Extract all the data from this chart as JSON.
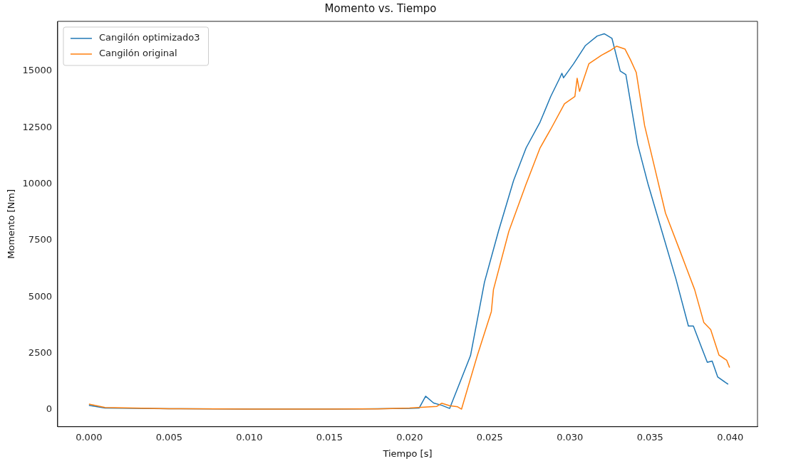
{
  "chart_data": {
    "type": "line",
    "title": "Momento vs. Tiempo",
    "xlabel": "Tiempo [s]",
    "ylabel": "Momento [Nm]",
    "xlim": [
      -0.00195,
      0.0417
    ],
    "ylim": [
      -750,
      17200
    ],
    "xticks": [
      {
        "value": 0,
        "label": "0.000"
      },
      {
        "value": 0.005,
        "label": "0.005"
      },
      {
        "value": 0.01,
        "label": "0.010"
      },
      {
        "value": 0.015,
        "label": "0.015"
      },
      {
        "value": 0.02,
        "label": "0.020"
      },
      {
        "value": 0.025,
        "label": "0.025"
      },
      {
        "value": 0.03,
        "label": "0.030"
      },
      {
        "value": 0.035,
        "label": "0.035"
      },
      {
        "value": 0.04,
        "label": "0.040"
      }
    ],
    "yticks": [
      0,
      2500,
      5000,
      7500,
      10000,
      12500,
      15000
    ],
    "legend": "top left",
    "grid": false,
    "marker": "none",
    "line_style": "solid",
    "series": [
      {
        "name": "Cangilón optimizado3",
        "color": "#1f77b4",
        "x": [
          0,
          0.001,
          0.005,
          0.01,
          0.015,
          0.02,
          0.0206,
          0.021,
          0.0215,
          0.022,
          0.0225,
          0.0238,
          0.02467,
          0.02554,
          0.02649,
          0.02727,
          0.02814,
          0.0288,
          0.02936,
          0.0295,
          0.0296,
          0.03023,
          0.03097,
          0.0317,
          0.03214,
          0.03262,
          0.03314,
          0.03349,
          0.03422,
          0.03487,
          0.03574,
          0.03661,
          0.03739,
          0.0377,
          0.03822,
          0.03857,
          0.03887,
          0.03922,
          0.03987
        ],
        "values": [
          200,
          80,
          50,
          30,
          30,
          60,
          80,
          600,
          300,
          200,
          60,
          2400,
          5650,
          7900,
          10160,
          11600,
          12740,
          13870,
          14680,
          14900,
          14700,
          15320,
          16130,
          16550,
          16650,
          16450,
          15000,
          14840,
          11770,
          10000,
          7900,
          5800,
          3710,
          3710,
          2740,
          2100,
          2160,
          1450,
          1130
        ]
      },
      {
        "name": "Cangilón original",
        "color": "#ff7f0e",
        "x": [
          0,
          0.001,
          0.005,
          0.01,
          0.015,
          0.018,
          0.02,
          0.0213,
          0.0217,
          0.022,
          0.0225,
          0.023,
          0.02324,
          0.02423,
          0.0251,
          0.02523,
          0.02619,
          0.02727,
          0.02814,
          0.0288,
          0.02966,
          0.03031,
          0.03045,
          0.0306,
          0.03118,
          0.03197,
          0.03249,
          0.03292,
          0.03344,
          0.03379,
          0.03414,
          0.03466,
          0.03531,
          0.03596,
          0.03683,
          0.03726,
          0.03778,
          0.03835,
          0.03878,
          0.0393,
          0.03978,
          0.03996
        ],
        "values": [
          250,
          100,
          50,
          30,
          30,
          40,
          80,
          130,
          150,
          290,
          180,
          130,
          30,
          2420,
          4350,
          5320,
          7900,
          10000,
          11600,
          12420,
          13550,
          13870,
          14680,
          14100,
          15320,
          15700,
          15900,
          16100,
          15970,
          15480,
          14930,
          12580,
          10650,
          8710,
          7100,
          6290,
          5320,
          3870,
          3550,
          2420,
          2190,
          1870
        ]
      }
    ]
  }
}
